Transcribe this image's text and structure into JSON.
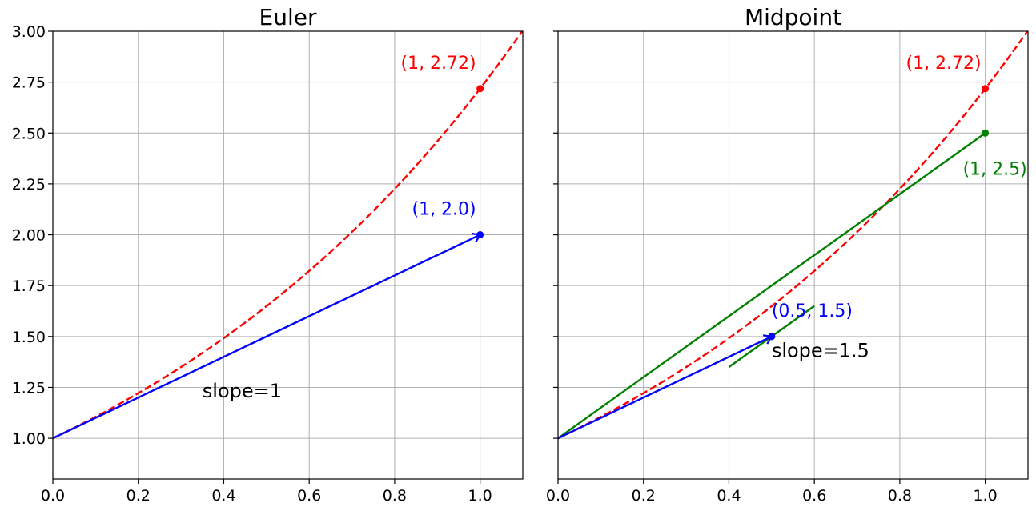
{
  "chart_data": [
    {
      "type": "line",
      "title": "Euler",
      "xlim": [
        0.0,
        1.1
      ],
      "ylim": [
        0.8,
        3.0
      ],
      "x_ticks": [
        0.0,
        0.2,
        0.4,
        0.6,
        0.8,
        1.0
      ],
      "x_tick_labels": [
        "0.0",
        "0.2",
        "0.4",
        "0.6",
        "0.8",
        "1.0"
      ],
      "y_ticks": [
        1.0,
        1.25,
        1.5,
        1.75,
        2.0,
        2.25,
        2.5,
        2.75,
        3.0
      ],
      "y_tick_labels": [
        "1.00",
        "1.25",
        "1.50",
        "1.75",
        "2.00",
        "2.25",
        "2.50",
        "2.75",
        "3.00"
      ],
      "grid": true,
      "curves": [
        {
          "function": "exp",
          "x_range": [
            0.0,
            1.1
          ],
          "color": "#ff0000",
          "style": "dashed"
        }
      ],
      "arrows": [
        {
          "from": [
            0.0,
            1.0
          ],
          "to": [
            1.0,
            2.0
          ],
          "color": "#0000ff"
        }
      ],
      "points": [
        {
          "x": 1.0,
          "y": 2.718,
          "color": "#ff0000",
          "label": "(1, 2.72)",
          "label_anchor": "above-left"
        },
        {
          "x": 1.0,
          "y": 2.0,
          "color": "#0000ff",
          "label": "(1, 2.0)",
          "label_anchor": "above-left"
        }
      ],
      "annotations": [
        {
          "text": "slope=1",
          "x": 0.35,
          "y": 1.2,
          "color": "#000000"
        }
      ]
    },
    {
      "type": "line",
      "title": "Midpoint",
      "xlim": [
        0.0,
        1.1
      ],
      "ylim": [
        0.8,
        3.0
      ],
      "x_ticks": [
        0.0,
        0.2,
        0.4,
        0.6,
        0.8,
        1.0
      ],
      "x_tick_labels": [
        "0.0",
        "0.2",
        "0.4",
        "0.6",
        "0.8",
        "1.0"
      ],
      "y_ticks": [
        1.0,
        1.25,
        1.5,
        1.75,
        2.0,
        2.25,
        2.5,
        2.75,
        3.0
      ],
      "y_tick_labels": [],
      "grid": true,
      "curves": [
        {
          "function": "exp",
          "x_range": [
            0.0,
            1.1
          ],
          "color": "#ff0000",
          "style": "dashed"
        }
      ],
      "lines": [
        {
          "from": [
            0.0,
            1.0
          ],
          "to": [
            1.0,
            2.5
          ],
          "color": "#008000"
        },
        {
          "from": [
            0.4,
            1.35
          ],
          "to": [
            0.6,
            1.65
          ],
          "color": "#008000"
        }
      ],
      "arrows": [
        {
          "from": [
            0.0,
            1.0
          ],
          "to": [
            0.5,
            1.5
          ],
          "color": "#0000ff"
        }
      ],
      "points": [
        {
          "x": 1.0,
          "y": 2.718,
          "color": "#ff0000",
          "label": "(1, 2.72)",
          "label_anchor": "above-left"
        },
        {
          "x": 1.0,
          "y": 2.5,
          "color": "#008000",
          "label": "(1, 2.5)",
          "label_anchor": "below-center"
        },
        {
          "x": 0.5,
          "y": 1.5,
          "color": "#0000ff",
          "label": "(0.5, 1.5)",
          "label_anchor": "above-right"
        }
      ],
      "annotations": [
        {
          "text": "slope=1.5",
          "x": 0.5,
          "y": 1.4,
          "color": "#000000"
        }
      ]
    }
  ]
}
